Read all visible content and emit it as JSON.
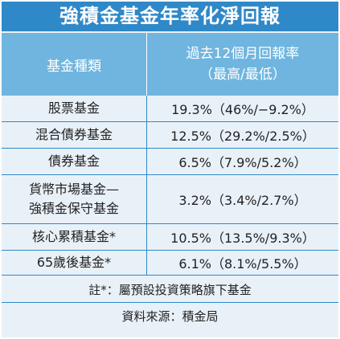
{
  "title": "強積金基金年率化淨回報",
  "header": {
    "col1": "基金種類",
    "col2_line1": "過去12個月回報率",
    "col2_line2": "（最高/最低）"
  },
  "rows": [
    {
      "name_line1": "股票基金",
      "name_line2": "",
      "value": "19.3%（46%/−9.2%）"
    },
    {
      "name_line1": "混合債券基金",
      "name_line2": "",
      "value": "12.5%（29.2%/2.5%）"
    },
    {
      "name_line1": "債券基金",
      "name_line2": "",
      "value": "6.5%（7.9%/5.2%）"
    },
    {
      "name_line1": "貨幣市場基金—",
      "name_line2": "強積金保守基金",
      "value": "3.2%（3.4%/2.7%）"
    },
    {
      "name_line1": "核心累積基金*",
      "name_line2": "",
      "value": "10.5%（13.5%/9.3%）"
    },
    {
      "name_line1": "65歲後基金*",
      "name_line2": "",
      "value": "6.1%（8.1%/5.5%）"
    }
  ],
  "note": "註*：屬預設投資策略旗下基金",
  "source": "資料來源：積金局"
}
